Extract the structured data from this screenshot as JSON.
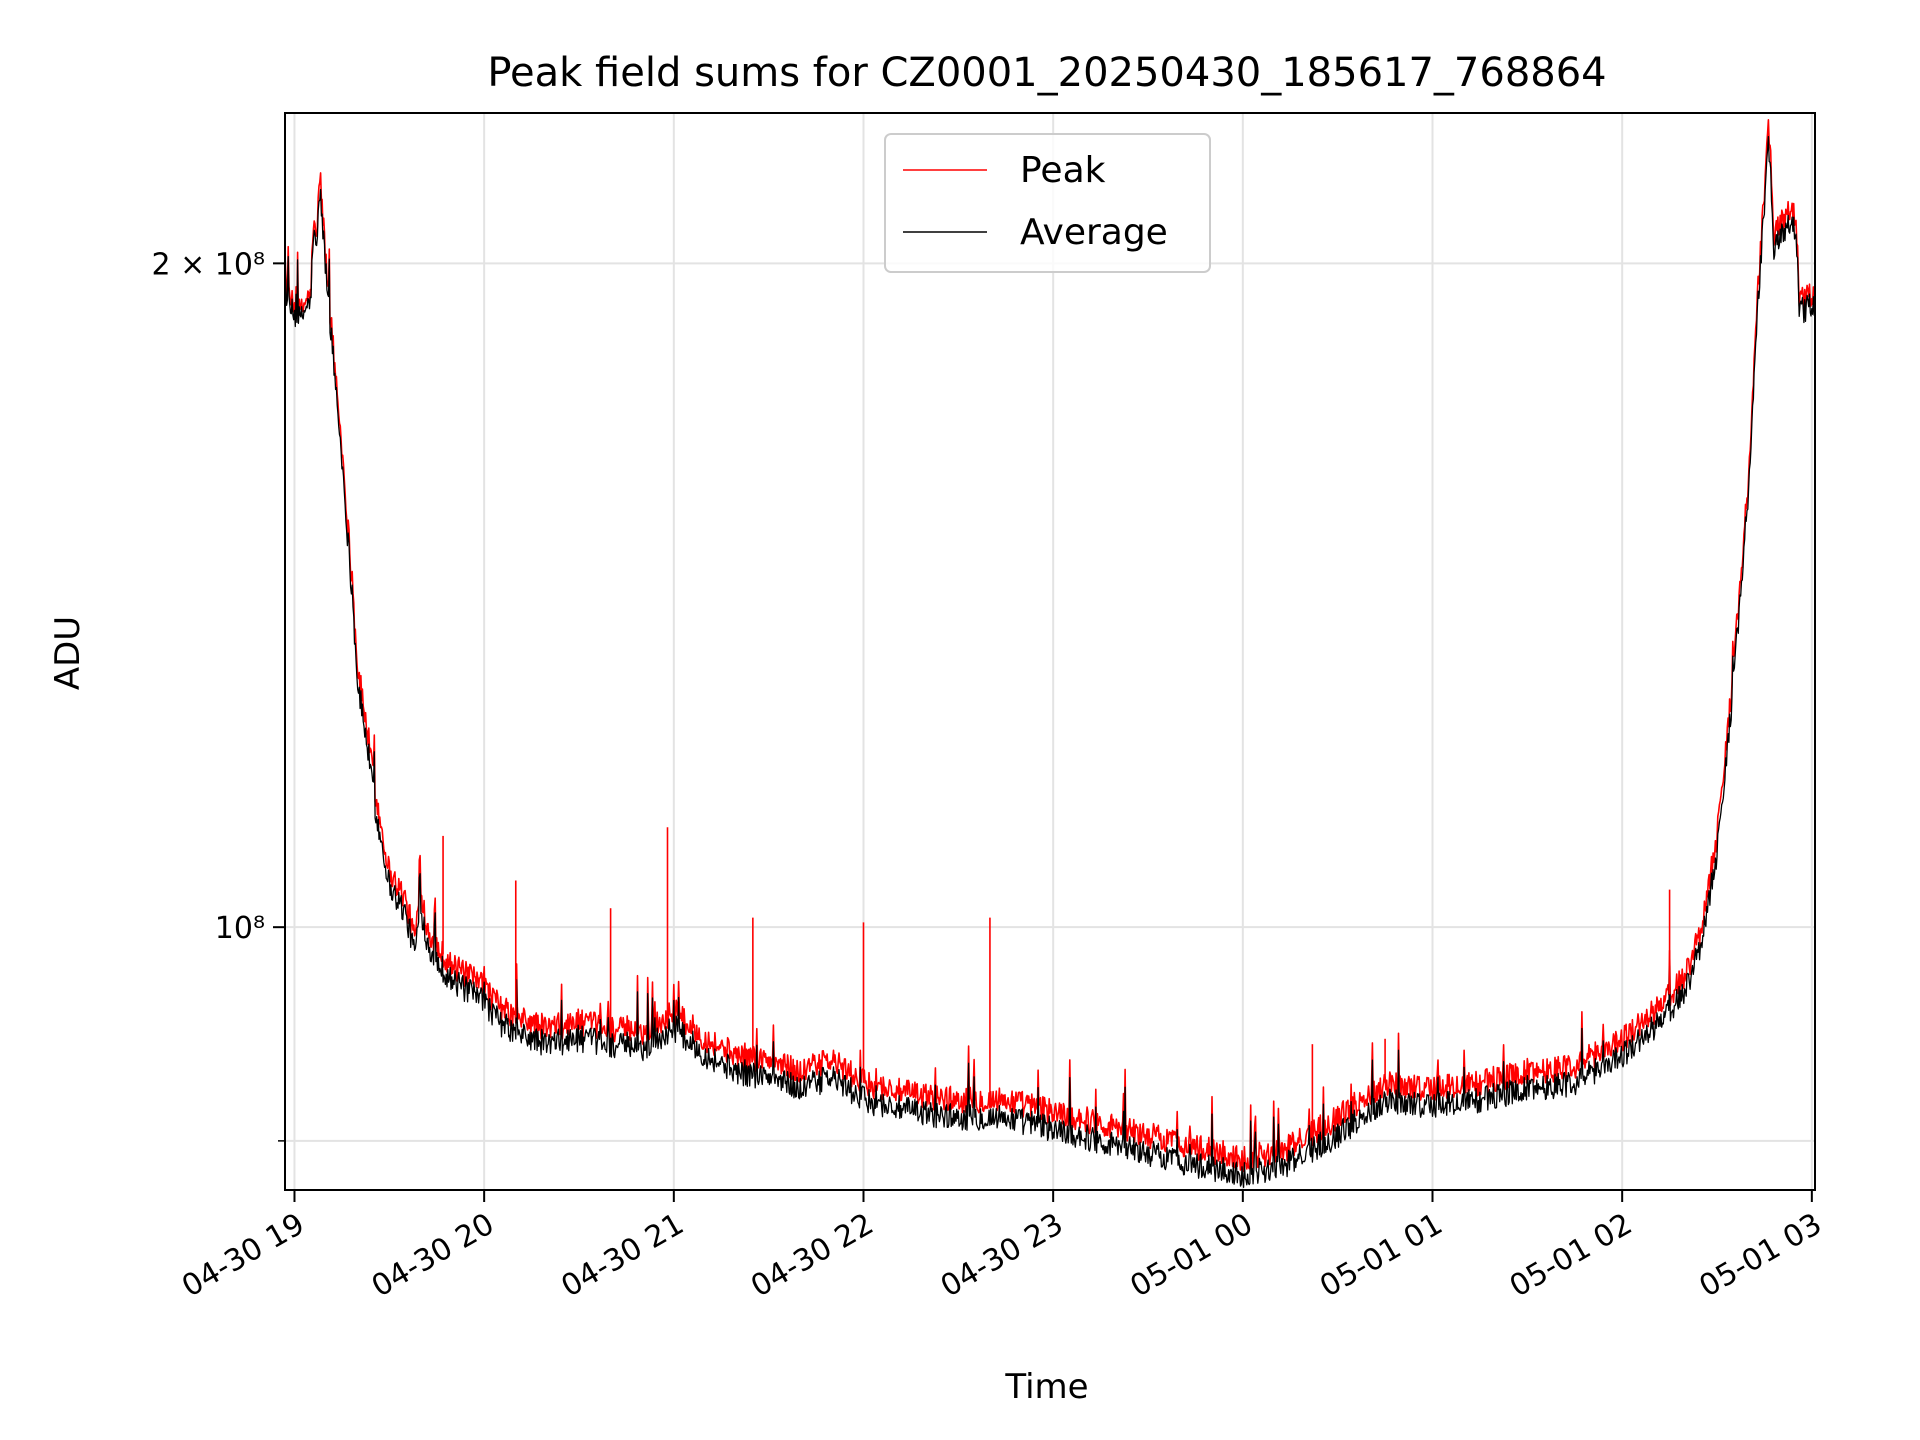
{
  "chart_data": {
    "type": "line",
    "title": "Peak field sums for CZ0001_20250430_185617_768864",
    "xlabel": "Time",
    "ylabel": "ADU",
    "yscale": "log",
    "ylim": [
      76000000,
      234000000
    ],
    "xlim": [
      "2025-04-30 18:57",
      "2025-05-01 03:01"
    ],
    "grid": true,
    "legend_position": "top-center",
    "x_ticks": [
      {
        "t": "2025-04-30 19:00",
        "label": "04-30 19"
      },
      {
        "t": "2025-04-30 20:00",
        "label": "04-30 20"
      },
      {
        "t": "2025-04-30 21:00",
        "label": "04-30 21"
      },
      {
        "t": "2025-04-30 22:00",
        "label": "04-30 22"
      },
      {
        "t": "2025-04-30 23:00",
        "label": "04-30 23"
      },
      {
        "t": "2025-05-01 00:00",
        "label": "05-01 00"
      },
      {
        "t": "2025-05-01 01:00",
        "label": "05-01 01"
      },
      {
        "t": "2025-05-01 02:00",
        "label": "05-01 02"
      },
      {
        "t": "2025-05-01 03:00",
        "label": "05-01 03"
      }
    ],
    "y_ticks": [
      {
        "value": 200000000,
        "label": "2 × 10⁸"
      },
      {
        "value": 100000000,
        "label": "10⁸"
      }
    ],
    "y_minor_gridlines": [
      80000000
    ],
    "series": [
      {
        "name": "Peak",
        "color": "#ff0000",
        "points": [
          [
            "2025-04-30 18:57",
            198000000
          ],
          [
            "2025-04-30 18:58",
            193000000
          ],
          [
            "2025-04-30 19:00",
            191000000
          ],
          [
            "2025-04-30 19:02",
            190000000
          ],
          [
            "2025-04-30 19:04",
            193000000
          ],
          [
            "2025-04-30 19:05",
            193000000
          ],
          [
            "2025-04-30 19:06",
            208000000
          ],
          [
            "2025-04-30 19:07",
            205000000
          ],
          [
            "2025-04-30 19:08",
            220000000
          ],
          [
            "2025-04-30 19:09",
            210000000
          ],
          [
            "2025-04-30 19:10",
            200000000
          ],
          [
            "2025-04-30 19:12",
            185000000
          ],
          [
            "2025-04-30 19:15",
            165000000
          ],
          [
            "2025-04-30 19:18",
            145000000
          ],
          [
            "2025-04-30 19:20",
            131000000
          ],
          [
            "2025-04-30 19:23",
            123000000
          ],
          [
            "2025-04-30 19:26",
            114000000
          ],
          [
            "2025-04-30 19:28",
            110000000
          ],
          [
            "2025-04-30 19:30",
            106000000
          ],
          [
            "2025-04-30 19:35",
            103000000
          ],
          [
            "2025-04-30 19:38",
            99000000
          ],
          [
            "2025-04-30 19:40",
            104000000
          ],
          [
            "2025-04-30 19:42",
            100000000
          ],
          [
            "2025-04-30 19:45",
            98000000
          ],
          [
            "2025-04-30 19:50",
            96000000
          ],
          [
            "2025-04-30 19:55",
            95000000
          ],
          [
            "2025-04-30 20:00",
            94000000
          ],
          [
            "2025-04-30 20:05",
            92000000
          ],
          [
            "2025-04-30 20:10",
            91000000
          ],
          [
            "2025-04-30 20:20",
            90000000
          ],
          [
            "2025-04-30 20:30",
            90500000
          ],
          [
            "2025-04-30 20:40",
            90000000
          ],
          [
            "2025-04-30 20:50",
            89500000
          ],
          [
            "2025-04-30 21:00",
            91500000
          ],
          [
            "2025-04-30 21:10",
            89000000
          ],
          [
            "2025-04-30 21:20",
            87500000
          ],
          [
            "2025-04-30 21:30",
            87000000
          ],
          [
            "2025-04-30 21:40",
            86000000
          ],
          [
            "2025-04-30 21:50",
            87000000
          ],
          [
            "2025-04-30 22:00",
            85000000
          ],
          [
            "2025-04-30 22:15",
            84000000
          ],
          [
            "2025-04-30 22:30",
            83500000
          ],
          [
            "2025-04-30 22:45",
            83500000
          ],
          [
            "2025-04-30 23:00",
            82500000
          ],
          [
            "2025-04-30 23:15",
            81500000
          ],
          [
            "2025-04-30 23:30",
            80500000
          ],
          [
            "2025-04-30 23:45",
            79500000
          ],
          [
            "2025-05-01 00:00",
            78500000
          ],
          [
            "2025-05-01 00:15",
            79500000
          ],
          [
            "2025-05-01 00:30",
            82000000
          ],
          [
            "2025-05-01 00:45",
            85000000
          ],
          [
            "2025-05-01 01:00",
            84500000
          ],
          [
            "2025-05-01 01:15",
            85000000
          ],
          [
            "2025-05-01 01:30",
            86000000
          ],
          [
            "2025-05-01 01:45",
            86500000
          ],
          [
            "2025-05-01 02:00",
            89000000
          ],
          [
            "2025-05-01 02:10",
            91500000
          ],
          [
            "2025-05-01 02:20",
            95000000
          ],
          [
            "2025-05-01 02:25",
            100000000
          ],
          [
            "2025-05-01 02:30",
            110000000
          ],
          [
            "2025-05-01 02:35",
            130000000
          ],
          [
            "2025-05-01 02:40",
            160000000
          ],
          [
            "2025-05-01 02:43",
            195000000
          ],
          [
            "2025-05-01 02:45",
            215000000
          ],
          [
            "2025-05-01 02:46",
            232000000
          ],
          [
            "2025-05-01 02:47",
            222000000
          ],
          [
            "2025-05-01 02:48",
            205000000
          ],
          [
            "2025-05-01 02:50",
            210000000
          ],
          [
            "2025-05-01 02:55",
            211000000
          ],
          [
            "2025-05-01 02:56",
            192000000
          ],
          [
            "2025-05-01 03:01",
            194000000
          ]
        ],
        "spikes": [
          [
            "2025-04-30 19:47",
            110000000
          ],
          [
            "2025-04-30 20:10",
            105000000
          ],
          [
            "2025-04-30 20:40",
            102000000
          ],
          [
            "2025-04-30 20:58",
            111000000
          ],
          [
            "2025-04-30 21:25",
            101000000
          ],
          [
            "2025-04-30 22:00",
            100500000
          ],
          [
            "2025-04-30 22:40",
            101000000
          ],
          [
            "2025-05-01 00:22",
            88500000
          ],
          [
            "2025-05-01 00:45",
            89000000
          ],
          [
            "2025-05-01 02:15",
            104000000
          ]
        ]
      },
      {
        "name": "Average",
        "color": "#000000",
        "points": [
          [
            "2025-04-30 18:57",
            196000000
          ],
          [
            "2025-04-30 18:58",
            191000000
          ],
          [
            "2025-04-30 19:00",
            189500000
          ],
          [
            "2025-04-30 19:02",
            188500000
          ],
          [
            "2025-04-30 19:04",
            191500000
          ],
          [
            "2025-04-30 19:05",
            191500000
          ],
          [
            "2025-04-30 19:06",
            206000000
          ],
          [
            "2025-04-30 19:07",
            203000000
          ],
          [
            "2025-04-30 19:08",
            216000000
          ],
          [
            "2025-04-30 19:09",
            207000000
          ],
          [
            "2025-04-30 19:10",
            198000000
          ],
          [
            "2025-04-30 19:12",
            183000000
          ],
          [
            "2025-04-30 19:15",
            163000000
          ],
          [
            "2025-04-30 19:18",
            143000000
          ],
          [
            "2025-04-30 19:20",
            129000000
          ],
          [
            "2025-04-30 19:23",
            121000000
          ],
          [
            "2025-04-30 19:26",
            112000000
          ],
          [
            "2025-04-30 19:28",
            108500000
          ],
          [
            "2025-04-30 19:30",
            104500000
          ],
          [
            "2025-04-30 19:35",
            101500000
          ],
          [
            "2025-04-30 19:38",
            97500000
          ],
          [
            "2025-04-30 19:40",
            102000000
          ],
          [
            "2025-04-30 19:42",
            98500000
          ],
          [
            "2025-04-30 19:45",
            96500000
          ],
          [
            "2025-04-30 19:50",
            94500000
          ],
          [
            "2025-04-30 19:55",
            93500000
          ],
          [
            "2025-04-30 20:00",
            92500000
          ],
          [
            "2025-04-30 20:05",
            90500000
          ],
          [
            "2025-04-30 20:10",
            89500000
          ],
          [
            "2025-04-30 20:20",
            88500000
          ],
          [
            "2025-04-30 20:30",
            89000000
          ],
          [
            "2025-04-30 20:40",
            88500000
          ],
          [
            "2025-04-30 20:50",
            88000000
          ],
          [
            "2025-04-30 21:00",
            90000000
          ],
          [
            "2025-04-30 21:10",
            87500000
          ],
          [
            "2025-04-30 21:20",
            86000000
          ],
          [
            "2025-04-30 21:30",
            85500000
          ],
          [
            "2025-04-30 21:40",
            84500000
          ],
          [
            "2025-04-30 21:50",
            85500000
          ],
          [
            "2025-04-30 22:00",
            83500000
          ],
          [
            "2025-04-30 22:15",
            82500000
          ],
          [
            "2025-04-30 22:30",
            82000000
          ],
          [
            "2025-04-30 22:45",
            82000000
          ],
          [
            "2025-04-30 23:00",
            81000000
          ],
          [
            "2025-04-30 23:15",
            80000000
          ],
          [
            "2025-04-30 23:30",
            79000000
          ],
          [
            "2025-04-30 23:45",
            78000000
          ],
          [
            "2025-05-01 00:00",
            77200000
          ],
          [
            "2025-05-01 00:15",
            78200000
          ],
          [
            "2025-05-01 00:30",
            80500000
          ],
          [
            "2025-05-01 00:45",
            83500000
          ],
          [
            "2025-05-01 01:00",
            83000000
          ],
          [
            "2025-05-01 01:15",
            83500000
          ],
          [
            "2025-05-01 01:30",
            84500000
          ],
          [
            "2025-05-01 01:45",
            85000000
          ],
          [
            "2025-05-01 02:00",
            87500000
          ],
          [
            "2025-05-01 02:10",
            90000000
          ],
          [
            "2025-05-01 02:20",
            93500000
          ],
          [
            "2025-05-01 02:25",
            98500000
          ],
          [
            "2025-05-01 02:30",
            108000000
          ],
          [
            "2025-05-01 02:35",
            128000000
          ],
          [
            "2025-05-01 02:40",
            158000000
          ],
          [
            "2025-05-01 02:43",
            192000000
          ],
          [
            "2025-05-01 02:45",
            212000000
          ],
          [
            "2025-05-01 02:46",
            228000000
          ],
          [
            "2025-05-01 02:47",
            218000000
          ],
          [
            "2025-05-01 02:48",
            202000000
          ],
          [
            "2025-05-01 02:50",
            207000000
          ],
          [
            "2025-05-01 02:55",
            208000000
          ],
          [
            "2025-05-01 02:56",
            190000000
          ],
          [
            "2025-05-01 03:01",
            192000000
          ]
        ]
      }
    ]
  }
}
